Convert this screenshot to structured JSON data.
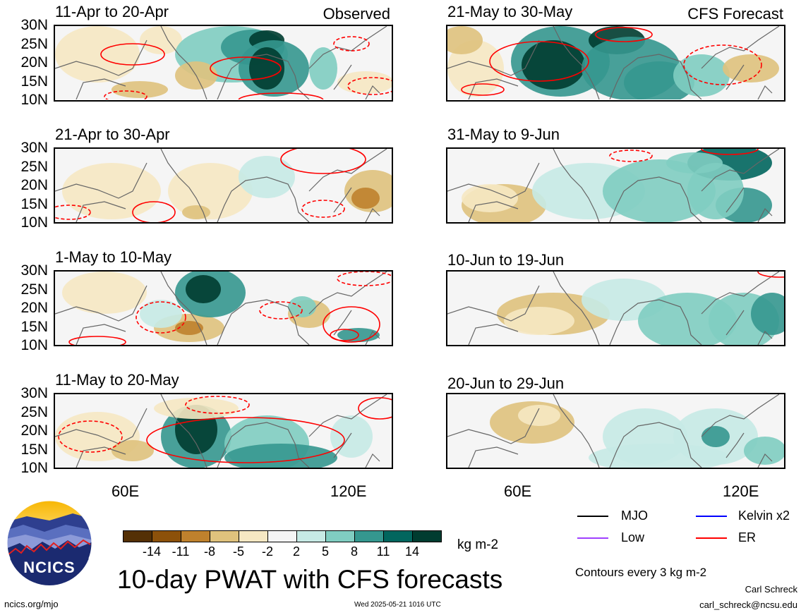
{
  "panels": [
    {
      "id": "p1",
      "title": "11-Apr to 20-Apr",
      "tag": "Observed"
    },
    {
      "id": "p2",
      "title": "21-Apr to 30-Apr",
      "tag": ""
    },
    {
      "id": "p3",
      "title": "1-May to 10-May",
      "tag": ""
    },
    {
      "id": "p4",
      "title": "11-May to 20-May",
      "tag": ""
    },
    {
      "id": "p5",
      "title": "21-May to 30-May",
      "tag": "CFS Forecast"
    },
    {
      "id": "p6",
      "title": "31-May to 9-Jun",
      "tag": ""
    },
    {
      "id": "p7",
      "title": "10-Jun to 19-Jun",
      "tag": ""
    },
    {
      "id": "p8",
      "title": "20-Jun to 29-Jun",
      "tag": ""
    }
  ],
  "lat_labels": [
    "30N",
    "25N",
    "20N",
    "15N",
    "10N"
  ],
  "lon_labels": [
    "60E",
    "120E"
  ],
  "colorbar": {
    "colors": [
      "#543005",
      "#8c510a",
      "#bf812d",
      "#dfc27d",
      "#f6e8c3",
      "#f5f5f5",
      "#c7eae5",
      "#80cdc1",
      "#35978f",
      "#01665e",
      "#003c30"
    ],
    "labels": [
      "-14",
      "-11",
      "-8",
      "-5",
      "-2",
      "2",
      "5",
      "8",
      "11",
      "14"
    ],
    "units": "kg m-2"
  },
  "legend": [
    {
      "label": "MJO",
      "color": "#000000",
      "style": "solid"
    },
    {
      "label": "Kelvin x2",
      "color": "#0000ff",
      "style": "solid"
    },
    {
      "label": "Low",
      "color": "#a040ff",
      "style": "solid"
    },
    {
      "label": "ER",
      "color": "#ff0000",
      "style": "solid"
    }
  ],
  "contour_note": "Contours every 3 kg m-2",
  "main_title": "10-day PWAT with CFS forecasts",
  "logo_text": "NCICS",
  "url": "ncics.org/mjo",
  "timestamp": "Wed 2025-05-21 1016 UTC",
  "author": "Carl Schreck",
  "email": "carl_schreck@ncsu.edu"
}
